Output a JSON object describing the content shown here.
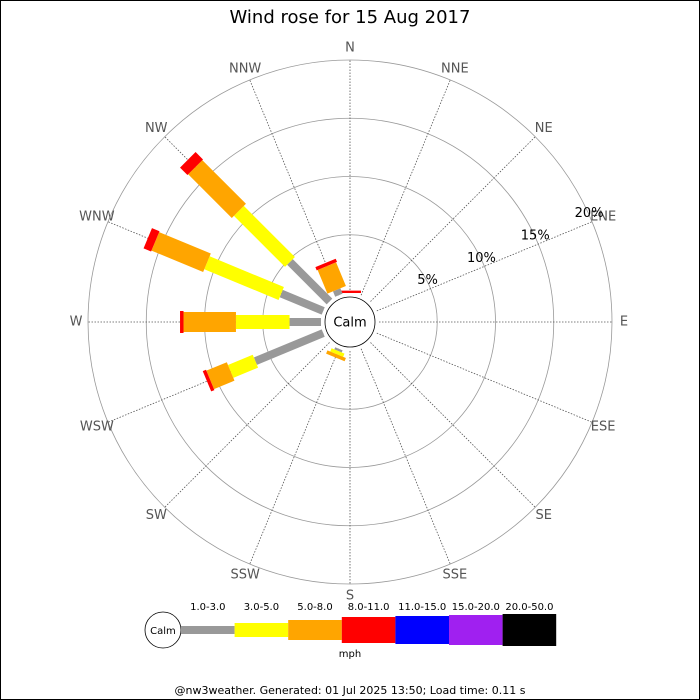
{
  "chart_data": {
    "type": "windrose",
    "title": "Wind rose for 15 Aug 2017",
    "categories": [
      "N",
      "NNE",
      "NE",
      "ENE",
      "E",
      "ESE",
      "SE",
      "SSE",
      "S",
      "SSW",
      "SW",
      "WSW",
      "W",
      "WNW",
      "NW",
      "NNW"
    ],
    "calm_label": "Calm",
    "rlim": [
      0,
      20
    ],
    "rticks": [
      {
        "value": 5,
        "label": "5%"
      },
      {
        "value": 10,
        "label": "10%"
      },
      {
        "value": 15,
        "label": "15%"
      },
      {
        "value": 20,
        "label": "20%"
      }
    ],
    "series": [
      {
        "name": "1.0-3.0",
        "color": "#999999",
        "values": [
          0,
          0,
          0,
          0,
          0,
          0,
          0,
          0,
          0,
          0.2,
          0,
          6.3,
          2.7,
          3.9,
          4.8,
          0.5
        ]
      },
      {
        "name": "3.0-5.0",
        "color": "#ffff00",
        "values": [
          0,
          0,
          0,
          0,
          0,
          0,
          0,
          0,
          0,
          0.3,
          0,
          2.3,
          4.6,
          6.9,
          6.2,
          0
        ]
      },
      {
        "name": "5.0-8.0",
        "color": "#ffa500",
        "values": [
          0,
          0,
          0,
          0,
          0,
          0,
          0,
          0,
          0,
          0.3,
          0,
          1.9,
          4.5,
          4.8,
          5.3,
          2.2
        ]
      },
      {
        "name": "8.0-11.0",
        "color": "#ff0000",
        "values": [
          0.2,
          0,
          0,
          0,
          0,
          0,
          0,
          0,
          0,
          0,
          0,
          0.3,
          0.3,
          0.7,
          0.9,
          0.3
        ]
      },
      {
        "name": "11.0-15.0",
        "color": "#0000ff",
        "values": [
          0,
          0,
          0,
          0,
          0,
          0,
          0,
          0,
          0,
          0,
          0,
          0,
          0,
          0,
          0,
          0
        ]
      },
      {
        "name": "15.0-20.0",
        "color": "#a020f0",
        "values": [
          0,
          0,
          0,
          0,
          0,
          0,
          0,
          0,
          0,
          0,
          0,
          0,
          0,
          0,
          0,
          0
        ]
      },
      {
        "name": "20.0-50.0",
        "color": "#000000",
        "values": [
          0,
          0,
          0,
          0,
          0,
          0,
          0,
          0,
          0,
          0,
          0,
          0,
          0,
          0,
          0,
          0
        ]
      }
    ],
    "legend_unit": "mph",
    "footer": "@nw3weather.  Generated: 01 Jul 2025 13:50; Load time: 0.11 s"
  }
}
